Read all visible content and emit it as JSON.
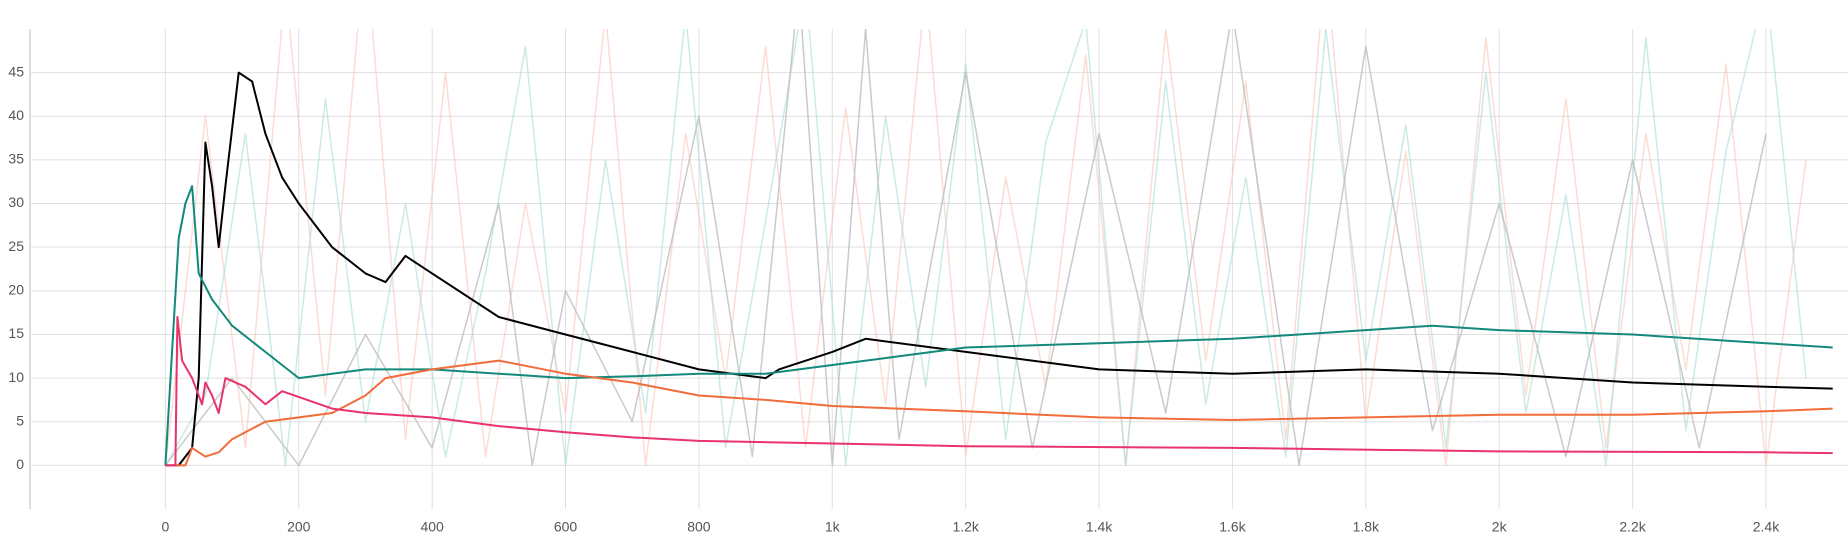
{
  "chart_data": {
    "type": "line",
    "xlim": [
      -203,
      2523
    ],
    "ylim": [
      -5,
      50
    ],
    "xticks": [
      0,
      200,
      400,
      600,
      800,
      {
        "value": 1000,
        "label": "1k"
      },
      {
        "value": 1200,
        "label": "1.2k"
      },
      {
        "value": 1400,
        "label": "1.4k"
      },
      {
        "value": 1600,
        "label": "1.6k"
      },
      {
        "value": 1800,
        "label": "1.8k"
      },
      {
        "value": 2000,
        "label": "2k"
      },
      {
        "value": 2200,
        "label": "2.2k"
      },
      {
        "value": 2400,
        "label": "2.4k"
      }
    ],
    "yticks": [
      0,
      5,
      10,
      15,
      20,
      25,
      30,
      35,
      40,
      45
    ],
    "grid": true,
    "series": [
      {
        "color": "#f9c7b6",
        "opacity": 0.6,
        "x": [
          0,
          60,
          120,
          180,
          240,
          300,
          360,
          420,
          480,
          540,
          600,
          660,
          720,
          780,
          840,
          900,
          960,
          1020,
          1080,
          1140,
          1200,
          1260,
          1320,
          1380,
          1440,
          1500,
          1560,
          1620,
          1680,
          1740,
          1800,
          1860,
          1920,
          1980,
          2040,
          2100,
          2160,
          2220,
          2280,
          2340,
          2400,
          2460
        ],
        "values": [
          0,
          40,
          2,
          55,
          8,
          60,
          3,
          45,
          1,
          30,
          6,
          52,
          0,
          38,
          10,
          48,
          2,
          41,
          7,
          55,
          1,
          33,
          9,
          47,
          0,
          50,
          12,
          44,
          3,
          58,
          5,
          36,
          0,
          49,
          8,
          42,
          2,
          38,
          11,
          46,
          0,
          35
        ]
      },
      {
        "color": "#a8dcd4",
        "opacity": 0.6,
        "x": [
          0,
          60,
          120,
          180,
          240,
          300,
          360,
          420,
          480,
          540,
          600,
          660,
          720,
          780,
          840,
          900,
          960,
          1020,
          1080,
          1140,
          1200,
          1260,
          1320,
          1380,
          1440,
          1500,
          1560,
          1620,
          1680,
          1740,
          1800,
          1860,
          1920,
          1980,
          2040,
          2100,
          2160,
          2220,
          2280,
          2340,
          2400,
          2460
        ],
        "values": [
          0,
          8,
          38,
          0,
          42,
          5,
          30,
          1,
          22,
          48,
          0,
          35,
          6,
          52,
          2,
          28,
          55,
          0,
          40,
          9,
          46,
          3,
          37,
          51,
          0,
          44,
          7,
          33,
          1,
          50,
          12,
          39,
          2,
          45,
          6,
          31,
          0,
          49,
          4,
          36,
          55,
          10
        ]
      },
      {
        "color": "#bdbdbd",
        "opacity": 0.8,
        "x": [
          0,
          100,
          200,
          300,
          400,
          500,
          550,
          600,
          700,
          800,
          880,
          950,
          1000,
          1050,
          1100,
          1200,
          1300,
          1400,
          1500,
          1600,
          1700,
          1800,
          1900,
          2000,
          2100,
          2200,
          2300,
          2400
        ],
        "values": [
          0,
          10,
          0,
          15,
          2,
          30,
          0,
          20,
          5,
          40,
          1,
          55,
          0,
          50,
          3,
          45,
          2,
          38,
          6,
          52,
          0,
          48,
          4,
          30,
          1,
          35,
          2,
          38
        ]
      },
      {
        "color": "#000000",
        "opacity": 1,
        "x": [
          0,
          20,
          40,
          50,
          60,
          70,
          80,
          90,
          110,
          130,
          150,
          175,
          200,
          250,
          300,
          330,
          360,
          400,
          500,
          600,
          700,
          800,
          900,
          920,
          1000,
          1050,
          1200,
          1400,
          1600,
          1800,
          2000,
          2200,
          2400,
          2500
        ],
        "values": [
          0,
          0,
          2,
          10,
          37,
          32,
          25,
          32,
          45,
          44,
          38,
          33,
          30,
          25,
          22,
          21,
          24,
          22,
          17,
          15,
          13,
          11,
          10,
          11,
          13,
          14.5,
          13,
          11,
          10.5,
          11,
          10.5,
          9.5,
          9,
          8.8
        ]
      },
      {
        "color": "#12897a",
        "opacity": 1,
        "x": [
          0,
          20,
          30,
          40,
          50,
          70,
          100,
          150,
          200,
          250,
          300,
          400,
          500,
          600,
          700,
          800,
          900,
          1000,
          1100,
          1200,
          1400,
          1600,
          1800,
          1900,
          2000,
          2200,
          2400,
          2500
        ],
        "values": [
          0,
          26,
          30,
          32,
          22,
          19,
          16,
          13,
          10,
          10.5,
          11,
          11,
          10.5,
          10,
          10.2,
          10.5,
          10.5,
          11.5,
          12.5,
          13.5,
          14,
          14.5,
          15.5,
          16,
          15.5,
          15,
          14,
          13.5
        ]
      },
      {
        "color": "#f26b3a",
        "opacity": 1,
        "x": [
          0,
          30,
          40,
          60,
          80,
          100,
          150,
          200,
          250,
          300,
          330,
          400,
          450,
          500,
          600,
          700,
          800,
          900,
          1000,
          1200,
          1400,
          1600,
          1800,
          2000,
          2200,
          2400,
          2500
        ],
        "values": [
          0,
          0,
          2,
          1,
          1.5,
          3,
          5,
          5.5,
          6,
          8,
          10,
          11,
          11.5,
          12,
          10.5,
          9.5,
          8,
          7.5,
          6.8,
          6.2,
          5.5,
          5.2,
          5.5,
          5.8,
          5.8,
          6.2,
          6.5
        ]
      },
      {
        "color": "#e8336d",
        "opacity": 1,
        "x": [
          0,
          15,
          18,
          25,
          40,
          55,
          60,
          70,
          80,
          90,
          120,
          150,
          175,
          250,
          300,
          400,
          500,
          600,
          700,
          800,
          1000,
          1200,
          1600,
          2000,
          2400,
          2500
        ],
        "values": [
          0,
          0,
          17,
          12,
          10,
          7,
          9.5,
          8,
          6,
          10,
          9,
          7,
          8.5,
          6.5,
          6,
          5.5,
          4.5,
          3.8,
          3.2,
          2.8,
          2.5,
          2.2,
          2,
          1.6,
          1.5,
          1.4
        ]
      }
    ]
  }
}
